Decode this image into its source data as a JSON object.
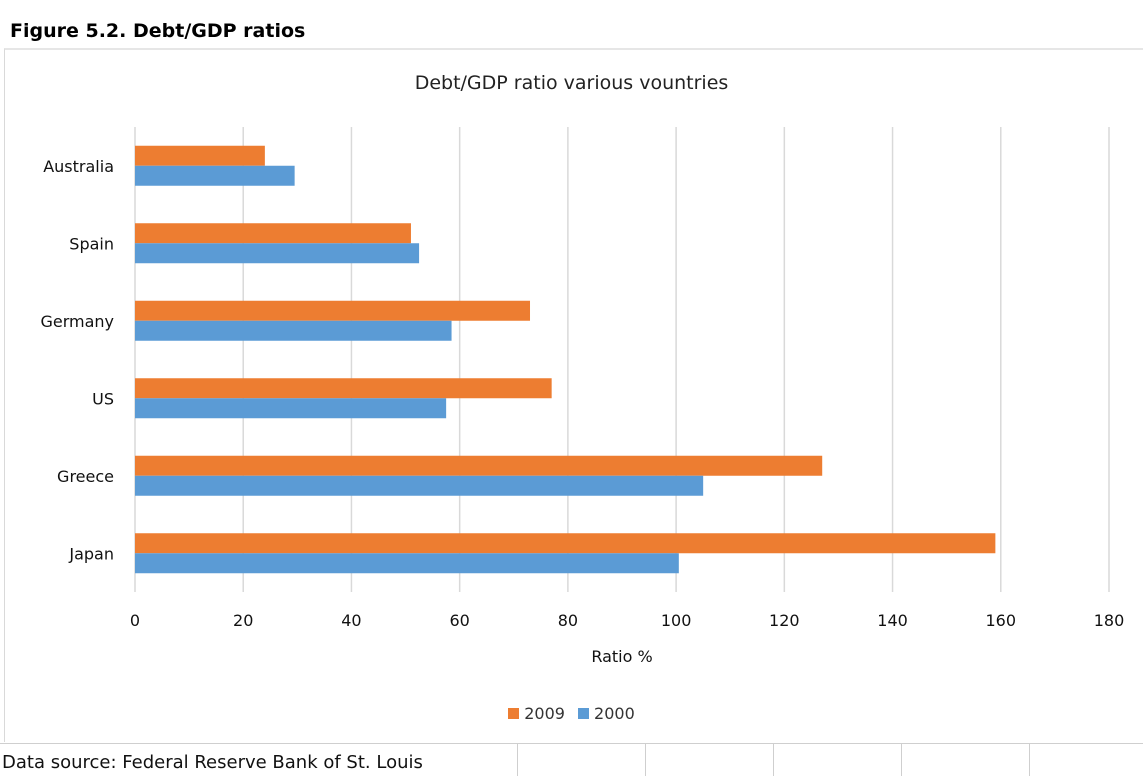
{
  "figure_title": "Figure 5.2. Debt/GDP ratios",
  "source": "Data source: Federal Reserve Bank of St. Louis",
  "colors": {
    "series_2009": "#ed7d31",
    "series_2000": "#5b9bd5",
    "grid": "#d9d9d9"
  },
  "chart_data": {
    "type": "bar",
    "orientation": "horizontal",
    "title": "Debt/GDP ratio various vountries",
    "xlabel": "Ratio %",
    "ylabel": "",
    "xlim": [
      0,
      180
    ],
    "x_ticks": [
      0,
      20,
      40,
      60,
      80,
      100,
      120,
      140,
      160,
      180
    ],
    "grid": "vertical",
    "legend_position": "bottom",
    "categories": [
      "Australia",
      "Spain",
      "Germany",
      "US",
      "Greece",
      "Japan"
    ],
    "series": [
      {
        "name": "2009",
        "color": "#ed7d31",
        "values": [
          24,
          51,
          73,
          77,
          127,
          159
        ]
      },
      {
        "name": "2000",
        "color": "#5b9bd5",
        "values": [
          29.5,
          52.5,
          58.5,
          57.5,
          105,
          100.5
        ]
      }
    ]
  }
}
